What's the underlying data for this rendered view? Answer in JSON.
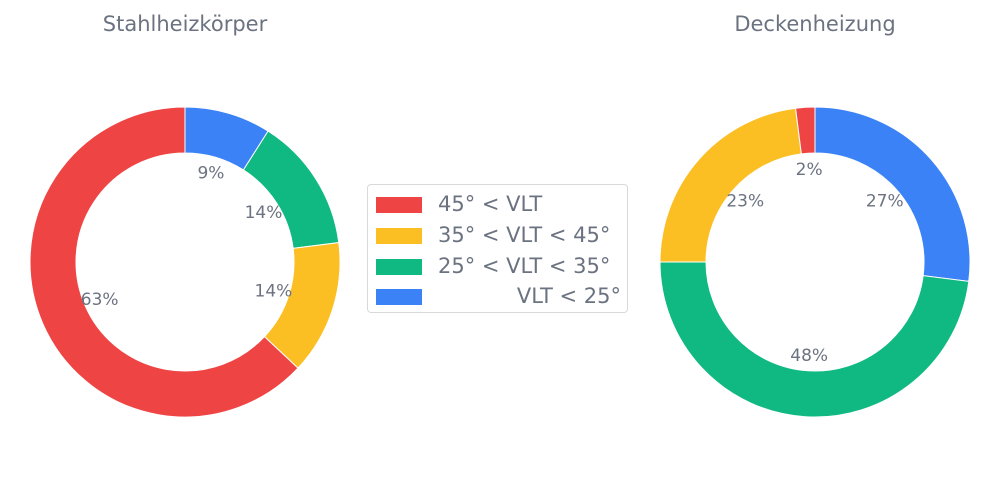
{
  "chart_data": [
    {
      "type": "pie",
      "style": "donut",
      "title": "Stahlheizkörper",
      "categories": [
        "45° < VLT",
        "35° < VLT < 45°",
        "25° < VLT < 35°",
        "VLT < 25°"
      ],
      "values": [
        63,
        14,
        14,
        9
      ],
      "labels": [
        "63%",
        "14%",
        "14%",
        "9%"
      ],
      "direction": "clockwise from top, starting with VLT < 25°"
    },
    {
      "type": "pie",
      "style": "donut",
      "title": "Deckenheizung",
      "categories": [
        "45° < VLT",
        "35° < VLT < 45°",
        "25° < VLT < 35°",
        "VLT < 25°"
      ],
      "values": [
        2,
        23,
        48,
        27
      ],
      "labels": [
        "2%",
        "23%",
        "48%",
        "27%"
      ],
      "direction": "clockwise from top, starting with VLT < 25°"
    }
  ],
  "legend": {
    "placement": "center",
    "items": [
      {
        "label": "45° < VLT",
        "color": "#ef4444"
      },
      {
        "label": "35° < VLT < 45°",
        "color": "#fbbf24"
      },
      {
        "label": "25° < VLT < 35°",
        "color": "#10b981"
      },
      {
        "label": "VLT < 25°",
        "color": "#3b82f6"
      }
    ]
  }
}
